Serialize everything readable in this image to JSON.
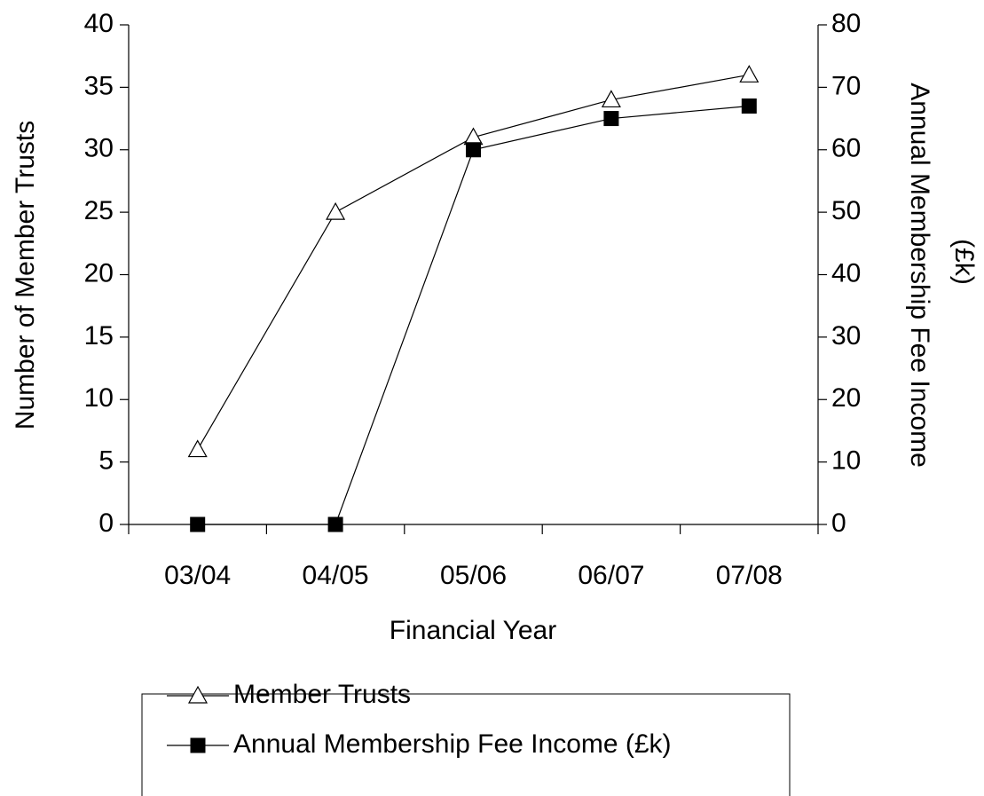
{
  "chart_data": {
    "type": "line",
    "categories": [
      "03/04",
      "04/05",
      "05/06",
      "06/07",
      "07/08"
    ],
    "xlabel": "Financial Year",
    "ylabel": "Number of Member Trusts",
    "y2label": [
      "Annual Membership Fee Income",
      "(£k)"
    ],
    "ylim": [
      0,
      40
    ],
    "yticks": [
      0,
      5,
      10,
      15,
      20,
      25,
      30,
      35,
      40
    ],
    "y2lim": [
      0,
      80
    ],
    "y2ticks": [
      0,
      10,
      20,
      30,
      40,
      50,
      60,
      70,
      80
    ],
    "grid": false,
    "legend": "bottom",
    "series": [
      {
        "name": "Member Trusts",
        "color": "#000000",
        "marker": "triangle",
        "values": [
          6,
          25,
          31,
          34,
          36
        ]
      },
      {
        "name": "Annual Membership Fee Income (£k)",
        "color": "#000000",
        "marker": "square",
        "axis": "y2",
        "values": [
          0,
          0,
          60,
          65,
          67
        ]
      }
    ]
  }
}
